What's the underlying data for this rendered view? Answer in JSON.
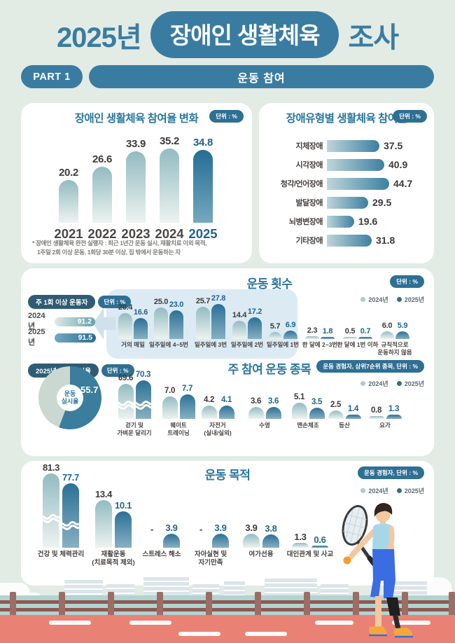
{
  "header": {
    "title_year": "2025년",
    "title_pill": "장애인 생활체육",
    "title_suffix": "조사",
    "part_badge": "PART 1",
    "part_title": "운동 참여"
  },
  "colors": {
    "brand_teal": "#3a7ca1",
    "title_teal": "#2b77a0",
    "badge_blue": "#2e6f93",
    "dark_pill": "#2f5c74",
    "series_2024_top": "#92bbc1",
    "series_2025_top": "#2c7096",
    "value_gray": "#3e3a39",
    "value_blue": "#1f648f",
    "page_bg": "#e3ebe5",
    "donut_dark": "#3b7d9c",
    "donut_light": "#cbd7d1",
    "track_red": "#e98275"
  },
  "chart_data": [
    {
      "id": "participation-trend",
      "type": "bar",
      "title": "장애인 생활체육 참여율 변화",
      "unit_badge": "단위 : %",
      "categories": [
        "2021",
        "2022",
        "2023",
        "2024",
        "2025"
      ],
      "values": [
        "20.2",
        "26.6",
        "33.9",
        "35.2",
        "34.8"
      ],
      "highlight_index": 4,
      "ylim": [
        0,
        40
      ],
      "footnote": [
        "* 장애인 생활체육 완전 실행자 : 최근 1년간 운동 실시, 재활치료 이외 목적,",
        "1주일 2회 이상 운동, 1회당 30분 이상, 집 밖에서 운동하는 자"
      ]
    },
    {
      "id": "participation-by-disability-type",
      "type": "bar",
      "title": "장애유형별 생활체육 참여율",
      "unit_badge": "단위 : %",
      "categories": [
        "지체장애",
        "시각장애",
        "청각/언어장애",
        "발달장애",
        "뇌병변장애",
        "기타장애"
      ],
      "values": [
        "37.5",
        "40.9",
        "44.7",
        "29.5",
        "19.6",
        "31.8"
      ],
      "xlim": [
        0,
        50
      ]
    },
    {
      "id": "exercise-frequency",
      "type": "bar",
      "title": "운동 횟수",
      "unit_badge": "단위 : %",
      "legend": [
        "2024년",
        "2025년"
      ],
      "categories": [
        "거의 매일",
        "일주일에 4~5번",
        "일주일에 3번",
        "일주일에 2번",
        "일주일에 1번",
        "한 달에 2~3번",
        "한 달에 1번 이하",
        "규칙적으로\n운동하지 않음"
      ],
      "series": [
        {
          "name": "2024년",
          "values": [
            "20.4",
            "25.0",
            "25.7",
            "14.4",
            "5.7",
            "2.3",
            "0.5",
            "6.0"
          ]
        },
        {
          "name": "2025년",
          "values": [
            "16.6",
            "23.0",
            "27.8",
            "17.2",
            "6.9",
            "1.8",
            "0.7",
            "5.9"
          ]
        }
      ],
      "weekly": {
        "badge": "주 1회 이상 운동자",
        "unit_badge": "단위 : %",
        "rows": [
          {
            "label": "2024년",
            "value": "91.2"
          },
          {
            "label": "2025년",
            "value": "91.5"
          }
        ]
      },
      "highlight_groups": "주 1회 이상 (첫 5개 항목)"
    },
    {
      "id": "main-sports",
      "type": "bar",
      "title": "주 참여 운동 종목",
      "badge": "운동 경험자, 상위7순위 종목, 단위 : %",
      "legend": [
        "2024년",
        "2025년"
      ],
      "categories": [
        "걷기 및\n가벼운 달리기",
        "웨이트\n트레이닝",
        "자전거\n(실내/실외)",
        "수영",
        "맨손체조",
        "등산",
        "요가"
      ],
      "series": [
        {
          "name": "2024년",
          "values": [
            "69.6",
            "7.0",
            "4.2",
            "3.6",
            "5.1",
            "2.5",
            "0.8"
          ]
        },
        {
          "name": "2025년",
          "values": [
            "70.3",
            "7.7",
            "4.1",
            "3.6",
            "3.5",
            "1.4",
            "1.3"
          ]
        }
      ],
      "donut": {
        "badge": "2025년 운동 실시율",
        "unit_badge": "단위 : %",
        "label": "운동\n실시율",
        "value": "55.7"
      }
    },
    {
      "id": "exercise-purpose",
      "type": "bar",
      "title": "운동 목적",
      "badge": "운동 경험자, 단위 : %",
      "legend": [
        "2024년",
        "2025년"
      ],
      "categories": [
        "건강 및 체력관리",
        "재활운동\n(치료목적 제외)",
        "스트레스 해소",
        "자아실현 및\n자기만족",
        "여가선용",
        "대인관계 및 사교"
      ],
      "series": [
        {
          "name": "2024년",
          "values": [
            "81.3",
            "13.4",
            "-",
            "-",
            "3.9",
            "1.3"
          ]
        },
        {
          "name": "2025년",
          "values": [
            "77.7",
            "10.1",
            "3.9",
            "3.9",
            "3.8",
            "0.6"
          ]
        }
      ]
    }
  ]
}
